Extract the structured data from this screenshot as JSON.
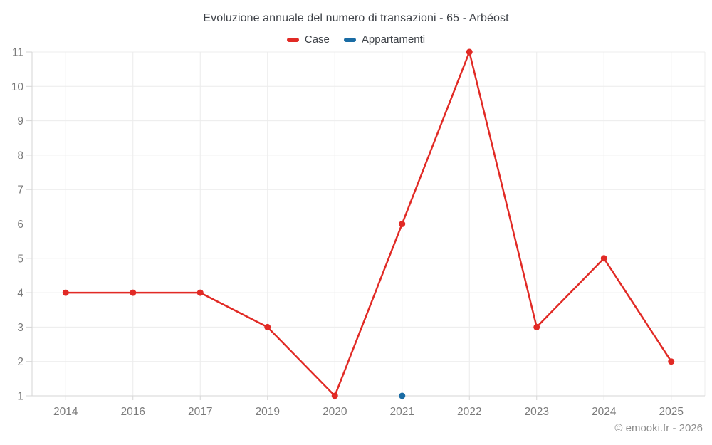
{
  "chart": {
    "title": "Evoluzione annuale del numero di transazioni - 65 - Arbéost"
  },
  "footer": {
    "copyright": "© emooki.fr - 2026"
  },
  "colors": {
    "case_red": "#e12a25",
    "appartamenti_blue": "#1a6ca4",
    "grid": "#ececec",
    "axis": "#d6d6d6",
    "tick_label": "#7b7b7b",
    "title_text": "#3e4248"
  },
  "chart_data": {
    "type": "line",
    "title": "Evoluzione annuale del numero di transazioni - 65 - Arbéost",
    "xlabel": "",
    "ylabel": "",
    "categories": [
      "2014",
      "2016",
      "2017",
      "2019",
      "2020",
      "2021",
      "2022",
      "2023",
      "2024",
      "2025"
    ],
    "series": [
      {
        "name": "Case",
        "color": "#e12a25",
        "values": [
          4,
          4,
          4,
          3,
          1,
          6,
          11,
          3,
          5,
          2
        ]
      },
      {
        "name": "Appartamenti",
        "color": "#1a6ca4",
        "values": [
          null,
          null,
          null,
          null,
          null,
          1,
          null,
          null,
          null,
          null
        ]
      }
    ],
    "ylim": [
      1,
      11
    ],
    "yticks": [
      1,
      2,
      3,
      4,
      5,
      6,
      7,
      8,
      9,
      10,
      11
    ],
    "grid": true,
    "legend_position": "top"
  }
}
